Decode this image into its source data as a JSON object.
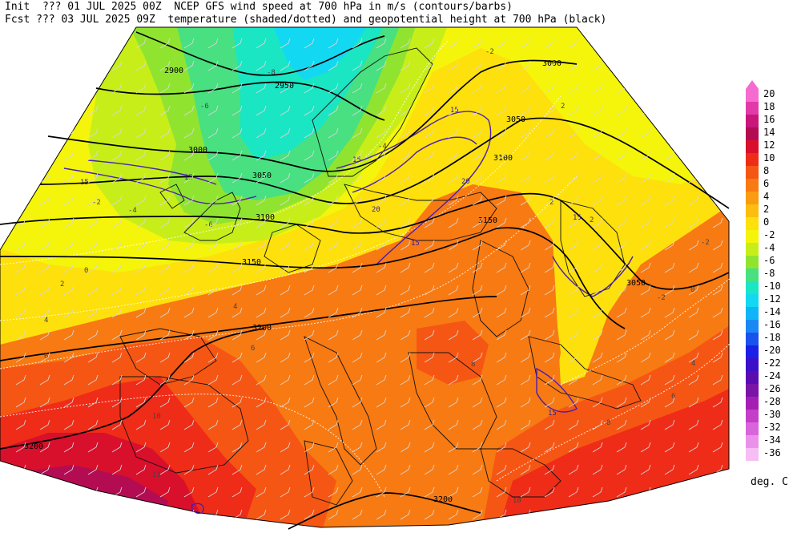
{
  "header": {
    "line1": "Init  ??? 01 JUL 2025 00Z  NCEP GFS wind speed at 700 hPa in m/s (contours/barbs)",
    "line2": "Fcst ??? 03 JUL 2025 09Z  temperature (shaded/dotted) and geopotential height at 700 hPa (black)"
  },
  "colorbar": {
    "unit": "deg. C",
    "levels": [
      {
        "label": "20",
        "color": "#f56bd0"
      },
      {
        "label": "18",
        "color": "#e23aa8"
      },
      {
        "label": "16",
        "color": "#c8167a"
      },
      {
        "label": "14",
        "color": "#b40c52"
      },
      {
        "label": "12",
        "color": "#d8102c"
      },
      {
        "label": "10",
        "color": "#ee2c18"
      },
      {
        "label": "8",
        "color": "#f65614"
      },
      {
        "label": "6",
        "color": "#f87a12"
      },
      {
        "label": "4",
        "color": "#fb9b12"
      },
      {
        "label": "2",
        "color": "#fdbd10"
      },
      {
        "label": "0",
        "color": "#fde00c"
      },
      {
        "label": "-2",
        "color": "#f4f50a"
      },
      {
        "label": "-4",
        "color": "#c8ee1a"
      },
      {
        "label": "-6",
        "color": "#90e430"
      },
      {
        "label": "-8",
        "color": "#48e080"
      },
      {
        "label": "-10",
        "color": "#1ae6c4"
      },
      {
        "label": "-12",
        "color": "#12d8f2"
      },
      {
        "label": "-14",
        "color": "#12b4f8"
      },
      {
        "label": "-16",
        "color": "#1a88f4"
      },
      {
        "label": "-18",
        "color": "#1a52ee"
      },
      {
        "label": "-20",
        "color": "#1a20e6"
      },
      {
        "label": "-22",
        "color": "#3c10c8"
      },
      {
        "label": "-24",
        "color": "#5a0cb0"
      },
      {
        "label": "-26",
        "color": "#7a14a8"
      },
      {
        "label": "-28",
        "color": "#a41eb4"
      },
      {
        "label": "-30",
        "color": "#c43ec8"
      },
      {
        "label": "-32",
        "color": "#da64dc"
      },
      {
        "label": "-34",
        "color": "#ea92ea"
      },
      {
        "label": "-36",
        "color": "#f6bef4"
      }
    ]
  },
  "height_contour_labels": [
    "2900",
    "2950",
    "3000",
    "3000",
    "3050",
    "3050",
    "3050",
    "3100",
    "3100",
    "3150",
    "3150",
    "3200",
    "3200",
    "3200"
  ],
  "temperature_contour_labels": [
    "-8",
    "-6",
    "-6",
    "-4",
    "-4",
    "-2",
    "-2",
    "0",
    "2",
    "2",
    "4",
    "4",
    "6",
    "6",
    "8",
    "10",
    "10",
    "12",
    "-2",
    "0",
    "2",
    "2",
    "-2",
    "4",
    "6",
    "8"
  ],
  "wind_contour_labels": [
    "15",
    "15",
    "15",
    "15",
    "15",
    "15",
    "20",
    "20",
    "15"
  ]
}
